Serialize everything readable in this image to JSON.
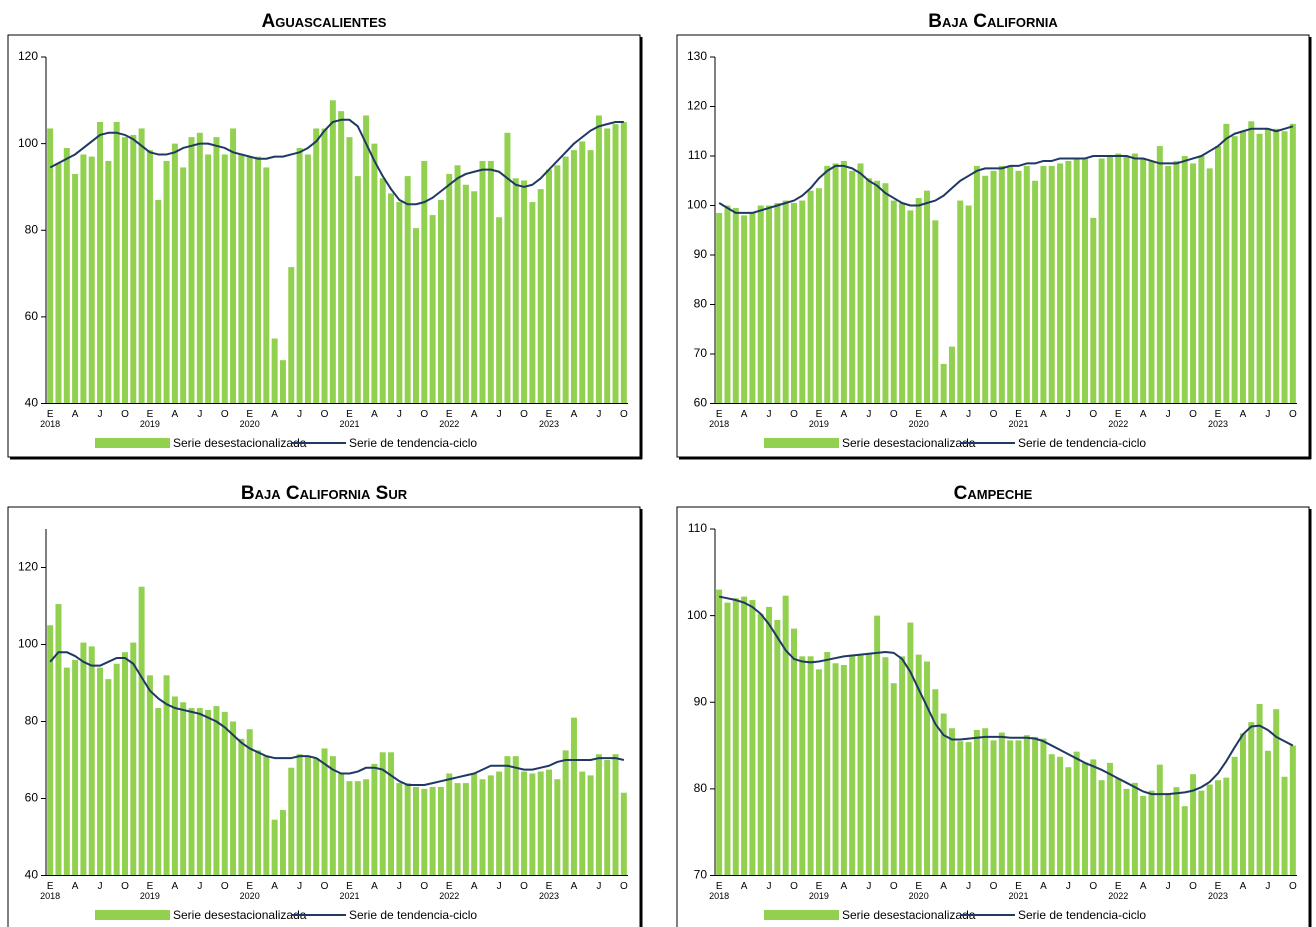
{
  "chart_data": [
    {
      "type": "bar",
      "title": "Aguascalientes",
      "categories": [
        "E",
        null,
        null,
        "A",
        null,
        null,
        "J",
        null,
        null,
        "O",
        null,
        null,
        "E",
        null,
        null,
        "A",
        null,
        null,
        "J",
        null,
        null,
        "O",
        null,
        null,
        "E",
        null,
        null,
        "A",
        null,
        null,
        "J",
        null,
        null,
        "O",
        null,
        null,
        "E",
        null,
        null,
        "A",
        null,
        null,
        "J",
        null,
        null,
        "O",
        null,
        null,
        "E",
        null,
        null,
        "A",
        null,
        null,
        "J",
        null,
        null,
        "O",
        null,
        null,
        "E",
        null,
        null,
        "A",
        null,
        null,
        "J",
        null,
        null,
        "O"
      ],
      "x_years": [
        "2018",
        "2019",
        "2020",
        "2021",
        "2022",
        "2023"
      ],
      "ylim": [
        40,
        120
      ],
      "yticks": [
        40,
        60,
        80,
        100,
        120
      ],
      "series": [
        {
          "name": "Serie desestacionalizada",
          "type": "bar",
          "color": "#92d050",
          "values": [
            103.5,
            95.5,
            99,
            93,
            97.5,
            97,
            105,
            96,
            105,
            101.5,
            102,
            103.5,
            98.5,
            87,
            96,
            100,
            94.5,
            101.5,
            102.5,
            97.5,
            101.5,
            97.5,
            103.5,
            97.5,
            97,
            97,
            94.5,
            55,
            50,
            71.5,
            99,
            97.5,
            103.5,
            103.5,
            110,
            107.5,
            101.5,
            92.5,
            106.5,
            100,
            92,
            88.5,
            86.5,
            92.5,
            80.5,
            96,
            83.5,
            87,
            93,
            95,
            90.5,
            89,
            96,
            96,
            83,
            102.5,
            92,
            91.5,
            86.5,
            89.5,
            94,
            95,
            97,
            98.5,
            100.5,
            98.5,
            106.5,
            103.5,
            104.5,
            105
          ]
        },
        {
          "name": "Serie de tendencia-ciclo",
          "type": "line",
          "color": "#1f3864",
          "values": [
            94.5,
            95.5,
            96.5,
            97.5,
            99,
            100.5,
            102,
            102.5,
            102.5,
            102,
            101,
            99.5,
            98,
            97.5,
            97.5,
            98,
            99,
            99.5,
            100,
            100,
            99.5,
            99,
            98,
            97.5,
            97,
            96.5,
            96.5,
            97,
            97,
            97.5,
            98,
            99,
            100.5,
            103,
            105,
            105.5,
            105.5,
            104,
            100,
            96,
            92.5,
            89.5,
            87,
            86,
            86,
            86.5,
            87.5,
            89,
            90.5,
            92,
            93,
            93.5,
            94,
            94,
            93.5,
            92,
            90.5,
            90,
            90.5,
            92,
            94,
            96,
            98,
            100,
            101.5,
            103,
            104,
            104.5,
            105,
            105
          ]
        }
      ]
    },
    {
      "type": "bar",
      "title": "Baja California",
      "categories": [
        "E",
        null,
        null,
        "A",
        null,
        null,
        "J",
        null,
        null,
        "O",
        null,
        null,
        "E",
        null,
        null,
        "A",
        null,
        null,
        "J",
        null,
        null,
        "O",
        null,
        null,
        "E",
        null,
        null,
        "A",
        null,
        null,
        "J",
        null,
        null,
        "O",
        null,
        null,
        "E",
        null,
        null,
        "A",
        null,
        null,
        "J",
        null,
        null,
        "O",
        null,
        null,
        "E",
        null,
        null,
        "A",
        null,
        null,
        "J",
        null,
        null,
        "O",
        null,
        null,
        "E",
        null,
        null,
        "A",
        null,
        null,
        "J",
        null,
        null,
        "O"
      ],
      "x_years": [
        "2018",
        "2019",
        "2020",
        "2021",
        "2022",
        "2023"
      ],
      "ylim": [
        60,
        130
      ],
      "yticks": [
        60,
        70,
        80,
        90,
        100,
        110,
        120,
        130
      ],
      "series": [
        {
          "name": "Serie desestacionalizada",
          "type": "bar",
          "color": "#92d050",
          "values": [
            98.5,
            100,
            99.5,
            98,
            98.5,
            100,
            100,
            100.5,
            101,
            100.5,
            101,
            103,
            103.5,
            108,
            108.5,
            109,
            107,
            108.5,
            105.5,
            105,
            104.5,
            101,
            100.5,
            99,
            101.5,
            103,
            97,
            68,
            71.5,
            101,
            100,
            108,
            106,
            107,
            108,
            108,
            107,
            108,
            105,
            108,
            108,
            108.5,
            109,
            109.5,
            109.5,
            97.5,
            109.5,
            110,
            110.5,
            110,
            110.5,
            109.5,
            109,
            112,
            108,
            109,
            110,
            108.5,
            110,
            107.5,
            112,
            116.5,
            114,
            115,
            117,
            114.5,
            115.5,
            115.5,
            115,
            116.5
          ]
        },
        {
          "name": "Serie de tendencia-ciclo",
          "type": "line",
          "color": "#1f3864",
          "values": [
            100.5,
            99.5,
            98.5,
            98.5,
            98.5,
            99,
            99.5,
            100,
            100.5,
            101,
            102,
            103.5,
            105.5,
            107,
            108,
            108,
            107.5,
            106.5,
            105,
            104,
            102.5,
            101.5,
            100.5,
            100,
            100,
            100.5,
            101,
            102,
            103.5,
            105,
            106,
            107,
            107.5,
            107.5,
            107.5,
            108,
            108,
            108.5,
            108.5,
            109,
            109,
            109.5,
            109.5,
            109.5,
            109.5,
            110,
            110,
            110,
            110,
            110,
            109.5,
            109.5,
            109,
            108.5,
            108.5,
            108.5,
            109,
            109.5,
            110,
            111,
            112,
            113.5,
            114.5,
            115,
            115.5,
            115.5,
            115.5,
            115,
            115.5,
            116
          ]
        }
      ]
    },
    {
      "type": "bar",
      "title": "Baja California Sur",
      "categories": [
        "E",
        null,
        null,
        "A",
        null,
        null,
        "J",
        null,
        null,
        "O",
        null,
        null,
        "E",
        null,
        null,
        "A",
        null,
        null,
        "J",
        null,
        null,
        "O",
        null,
        null,
        "E",
        null,
        null,
        "A",
        null,
        null,
        "J",
        null,
        null,
        "O",
        null,
        null,
        "E",
        null,
        null,
        "A",
        null,
        null,
        "J",
        null,
        null,
        "O",
        null,
        null,
        "E",
        null,
        null,
        "A",
        null,
        null,
        "J",
        null,
        null,
        "O",
        null,
        null,
        "E",
        null,
        null,
        "A",
        null,
        null,
        "J",
        null,
        null,
        "O"
      ],
      "x_years": [
        "2018",
        "2019",
        "2020",
        "2021",
        "2022",
        "2023"
      ],
      "ylim": [
        40,
        130
      ],
      "yticks": [
        40,
        60,
        80,
        100,
        120
      ],
      "series": [
        {
          "name": "Serie desestacionalizada",
          "type": "bar",
          "color": "#92d050",
          "values": [
            105,
            110.5,
            94,
            96,
            100.5,
            99.5,
            94,
            91,
            95,
            98,
            100.5,
            115,
            92,
            83.5,
            92,
            86.5,
            85,
            83.5,
            83.5,
            83,
            84,
            82.5,
            80,
            75.5,
            78,
            72.5,
            71,
            54.5,
            57,
            68,
            71.5,
            71,
            70.5,
            73,
            71,
            66.5,
            64.5,
            64.5,
            65,
            69,
            72,
            72,
            64,
            64,
            63,
            62.5,
            63,
            63,
            66.5,
            64,
            64,
            66.5,
            65,
            66,
            67,
            71,
            71,
            67,
            66.5,
            67,
            67.5,
            65,
            72.5,
            81,
            67,
            66,
            71.5,
            70,
            71.5,
            61.5
          ]
        },
        {
          "name": "Serie de tendencia-ciclo",
          "type": "line",
          "color": "#1f3864",
          "values": [
            95.5,
            98,
            98,
            97,
            95.5,
            94.5,
            94.5,
            95.5,
            96.5,
            96.5,
            95,
            91.5,
            88,
            86,
            84.5,
            83.5,
            83,
            82.5,
            82,
            81,
            80,
            78.5,
            76.5,
            74.5,
            73,
            72,
            71,
            70.5,
            70.5,
            70.5,
            71,
            71,
            70.5,
            69,
            67.5,
            66.5,
            66.5,
            67,
            68,
            68,
            67.5,
            66,
            64.5,
            63.5,
            63.5,
            63.5,
            64,
            64.5,
            65,
            65.5,
            66,
            66.5,
            67.5,
            68.5,
            68.5,
            68.5,
            68,
            67.5,
            67.5,
            68,
            68.5,
            69.5,
            70,
            70,
            70,
            70,
            70.5,
            70.5,
            70.5,
            70
          ]
        }
      ]
    },
    {
      "type": "bar",
      "title": "Campeche",
      "categories": [
        "E",
        null,
        null,
        "A",
        null,
        null,
        "J",
        null,
        null,
        "O",
        null,
        null,
        "E",
        null,
        null,
        "A",
        null,
        null,
        "J",
        null,
        null,
        "O",
        null,
        null,
        "E",
        null,
        null,
        "A",
        null,
        null,
        "J",
        null,
        null,
        "O",
        null,
        null,
        "E",
        null,
        null,
        "A",
        null,
        null,
        "J",
        null,
        null,
        "O",
        null,
        null,
        "E",
        null,
        null,
        "A",
        null,
        null,
        "J",
        null,
        null,
        "O",
        null,
        null,
        "E",
        null,
        null,
        "A",
        null,
        null,
        "J",
        null,
        null,
        "O"
      ],
      "x_years": [
        "2018",
        "2019",
        "2020",
        "2021",
        "2022",
        "2023"
      ],
      "ylim": [
        70,
        110
      ],
      "yticks": [
        70,
        80,
        90,
        100,
        110
      ],
      "series": [
        {
          "name": "Serie desestacionalizada",
          "type": "bar",
          "color": "#92d050",
          "values": [
            103,
            101.5,
            102,
            102.2,
            101.8,
            100.2,
            101,
            99.5,
            102.3,
            98.5,
            95.3,
            95.3,
            93.8,
            95.8,
            94.5,
            94.3,
            95.5,
            95.5,
            95.6,
            100,
            95.2,
            92.2,
            95.3,
            99.2,
            95.5,
            94.7,
            91.5,
            88.7,
            87,
            85.5,
            85.4,
            86.8,
            87,
            85.6,
            86.5,
            85.6,
            85.6,
            86.2,
            86,
            85.8,
            84,
            83.7,
            82.5,
            84.3,
            83,
            83.4,
            81,
            83,
            81.2,
            80,
            80.7,
            79.2,
            79.8,
            82.8,
            79.5,
            80.2,
            78,
            81.7,
            79.8,
            80.5,
            81,
            81.3,
            83.7,
            86.4,
            87.7,
            89.8,
            84.4,
            89.2,
            81.4,
            85
          ]
        },
        {
          "name": "Serie de tendencia-ciclo",
          "type": "line",
          "color": "#1f3864",
          "values": [
            102.2,
            102,
            101.8,
            101.5,
            101,
            100.2,
            99,
            97.5,
            96,
            95,
            94.7,
            94.6,
            94.7,
            94.9,
            95.1,
            95.3,
            95.4,
            95.5,
            95.6,
            95.7,
            95.8,
            95.7,
            95,
            93.5,
            91.5,
            89.5,
            87.5,
            86.2,
            85.7,
            85.7,
            85.8,
            85.9,
            86,
            86,
            86,
            85.9,
            85.9,
            85.9,
            85.8,
            85.5,
            85,
            84.5,
            84,
            83.5,
            83,
            82.6,
            82.2,
            81.7,
            81.2,
            80.7,
            80.2,
            79.7,
            79.4,
            79.4,
            79.4,
            79.5,
            79.6,
            79.8,
            80.2,
            80.8,
            81.8,
            83.2,
            84.8,
            86.3,
            87.2,
            87.3,
            86.8,
            86,
            85.5,
            85
          ]
        }
      ]
    }
  ]
}
